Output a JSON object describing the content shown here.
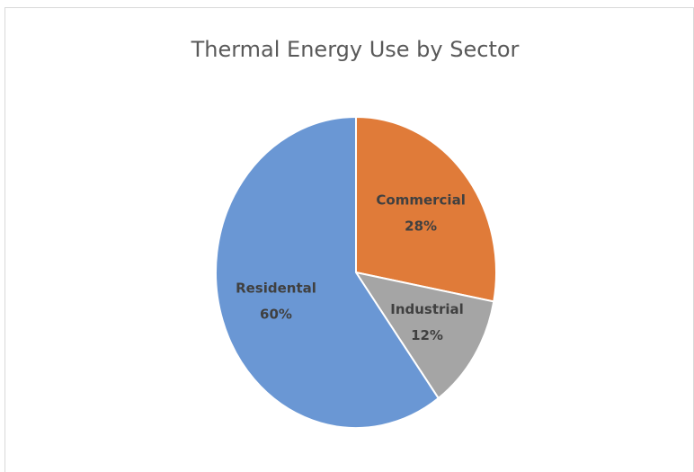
{
  "chart_data": {
    "type": "pie",
    "title": "Thermal Energy Use by Sector",
    "categories": [
      "Commercial",
      "Industrial",
      "Residental"
    ],
    "values": [
      28,
      12,
      60
    ],
    "value_labels": [
      "28%",
      "12%",
      "60%"
    ],
    "colors": [
      "#e07b39",
      "#a5a5a5",
      "#6a97d4"
    ]
  }
}
